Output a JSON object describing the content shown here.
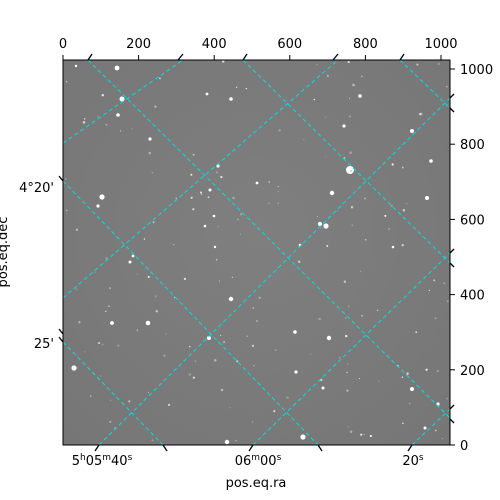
{
  "figure": {
    "xlabel": "pos.eq.ra",
    "ylabel": "pos.eq.dec",
    "pixel_axes": {
      "x_ticks": [
        "0",
        "200",
        "400",
        "600",
        "800",
        "1000"
      ],
      "y_ticks": [
        "0",
        "200",
        "400",
        "600",
        "800",
        "1000"
      ],
      "x_tick_values": [
        0,
        200,
        400,
        600,
        800,
        1000
      ],
      "y_tick_values": [
        0,
        200,
        400,
        600,
        800,
        1000
      ],
      "xlim": [
        0,
        1024
      ],
      "ylim": [
        0,
        1024
      ]
    },
    "world_axes": {
      "dec_ticks": [
        "4°20'",
        "25'"
      ],
      "ra_tick_labels": [
        {
          "h": "5",
          "m": "05",
          "s": "40"
        },
        {
          "h": "",
          "m": "06",
          "s": "00"
        },
        {
          "h": "",
          "m": "",
          "s": "20"
        }
      ]
    },
    "image": {
      "grayscale_background": "#7d7d7d",
      "grid_color": "#00e0e0",
      "grid_style": "dashed"
    }
  }
}
